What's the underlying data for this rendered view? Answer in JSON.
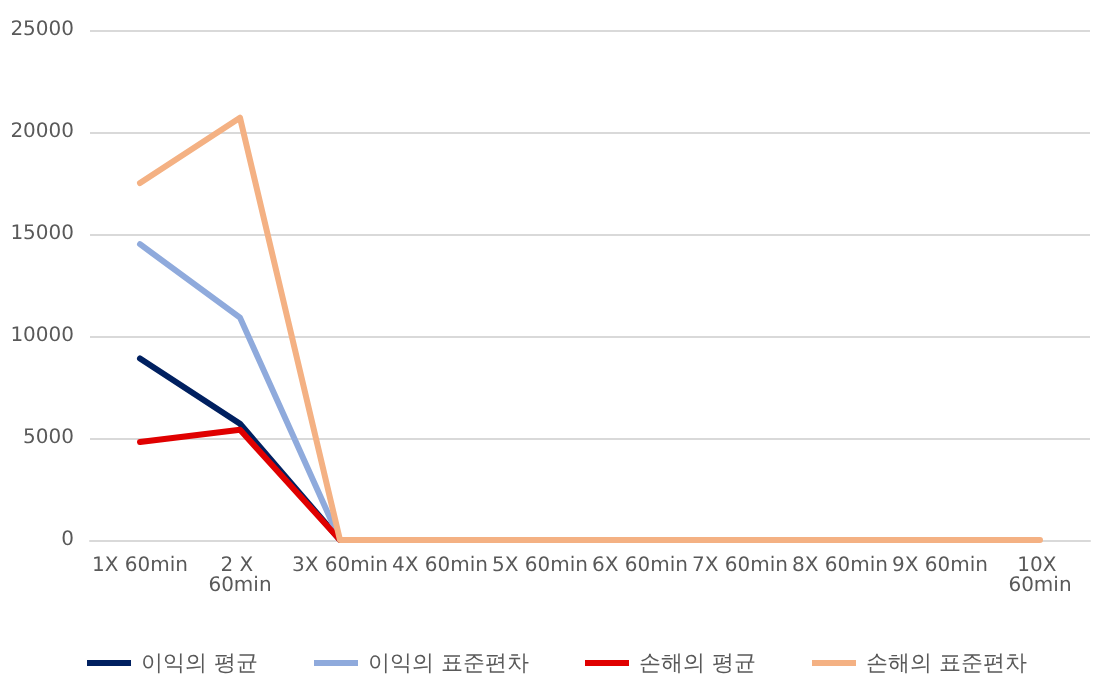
{
  "chart_data": {
    "type": "line",
    "categories": [
      "1X 60min",
      "2 X 60min",
      "3X 60min",
      "4X 60min",
      "5X 60min",
      "6X 60min",
      "7X 60min",
      "8X 60min",
      "9X 60min",
      "10X 60min"
    ],
    "series": [
      {
        "name": "이익의 평균",
        "color": "#002060",
        "values": [
          8900,
          5700,
          0,
          null,
          null,
          null,
          null,
          null,
          null,
          null
        ]
      },
      {
        "name": "이익의 표준편차",
        "color": "#8faadc",
        "values": [
          14500,
          10900,
          0,
          null,
          null,
          null,
          null,
          null,
          null,
          null
        ]
      },
      {
        "name": "손해의 평균",
        "color": "#e00000",
        "values": [
          4800,
          5400,
          0,
          null,
          null,
          null,
          null,
          null,
          null,
          null
        ]
      },
      {
        "name": "손해의 표준편차",
        "color": "#f4b183",
        "values": [
          17500,
          20700,
          0,
          0,
          0,
          0,
          0,
          0,
          0,
          0
        ]
      }
    ],
    "ylim": [
      0,
      25000
    ],
    "yticks": [
      0,
      5000,
      10000,
      15000,
      20000,
      25000
    ],
    "grid": "y",
    "legend": "bottom",
    "marker": "none",
    "line_style": "solid"
  }
}
